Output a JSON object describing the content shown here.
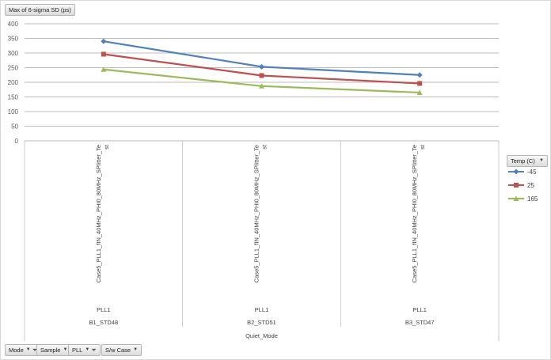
{
  "values_field": {
    "label": "Max of 6-sigma SD (ps)"
  },
  "legend_field": {
    "label": "Temp (C)",
    "dropdown_icon": "chevron-down-icon"
  },
  "bottom_fields": [
    {
      "label": "Mode",
      "icons": [
        "chevron-down-icon",
        "filter-icon"
      ]
    },
    {
      "label": "Sample",
      "icons": [
        "chevron-down-icon"
      ]
    },
    {
      "label": "PLL",
      "icons": [
        "chevron-down-icon",
        "filter-icon"
      ]
    },
    {
      "label": "S/w Case",
      "icons": [
        "chevron-down-icon"
      ]
    }
  ],
  "colors": {
    "-45": "#4f81bd",
    "25": "#c0504d",
    "165": "#9bbb59",
    "grid": "#a6a6a6",
    "axis_text": "#595959"
  },
  "chart_data": {
    "type": "line",
    "ylim": [
      0,
      400
    ],
    "y_ticks": [
      0,
      50,
      100,
      150,
      200,
      250,
      300,
      350,
      400
    ],
    "grid": true,
    "legend_position": "right",
    "legend_title": "Temp (C)",
    "category_levels": {
      "sw_case": [
        "Case5_PLL1_fIN_40MHz_PHI0_80MHz_SPlitter_Test",
        "Case5_PLL1_fIN_40MHz_PHI0_80MHz_SPlitter_Test",
        "Case5_PLL1_fIN_40MHz_PHI0_80MHz_SPlitter_Test"
      ],
      "sw_case_lines": [
        [
          "Case5_PLL1_fIN_40MHz_PHI0_80MHz_SPlitter_Te",
          "st"
        ],
        [
          "Case5_PLL1_fIN_40MHz_PHI0_80MHz_SPlitter_Te",
          "st"
        ],
        [
          "Case5_PLL1_fIN_40MHz_PHI0_80MHz_SPlitter_Te",
          "st"
        ]
      ],
      "pll": [
        "PLL1",
        "PLL1",
        "PLL1"
      ],
      "sample": [
        "B1_STD48",
        "B2_STD51",
        "B3_STD47"
      ],
      "mode": [
        "Quiet_Mode"
      ]
    },
    "series": [
      {
        "name": "-45",
        "marker": "diamond",
        "values": [
          340,
          253,
          225
        ]
      },
      {
        "name": "25",
        "marker": "square",
        "values": [
          296,
          223,
          196
        ]
      },
      {
        "name": "165",
        "marker": "triangle",
        "values": [
          244,
          187,
          165
        ]
      }
    ]
  }
}
